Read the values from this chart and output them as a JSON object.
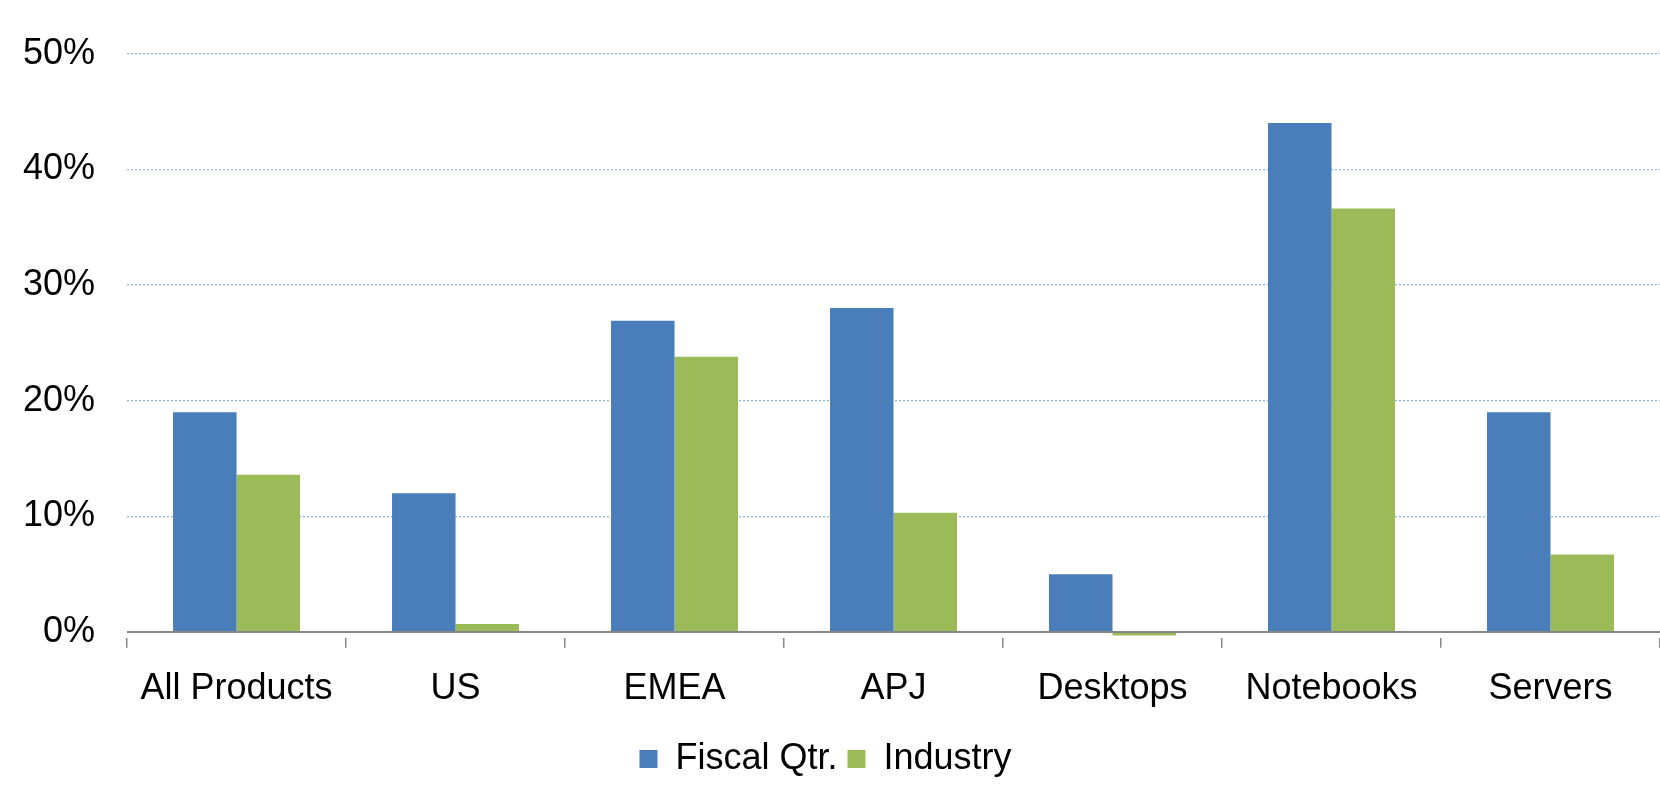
{
  "chart_data": {
    "type": "bar",
    "categories": [
      "All Products",
      "US",
      "EMEA",
      "APJ",
      "Desktops",
      "Notebooks",
      "Servers"
    ],
    "series": [
      {
        "name": "Fiscal Qtr.",
        "color": "#4a7ebb",
        "values": [
          19,
          12,
          26.9,
          28,
          5,
          44,
          19
        ]
      },
      {
        "name": "Industry",
        "color": "#9bbb59",
        "values": [
          13.6,
          0.7,
          23.8,
          10.3,
          -0.3,
          36.6,
          6.7
        ]
      }
    ],
    "ylim": [
      -0.5,
      50
    ],
    "yticks": [
      {
        "value": 0,
        "label": "0%"
      },
      {
        "value": 10,
        "label": "10%"
      },
      {
        "value": 20,
        "label": "20%"
      },
      {
        "value": 30,
        "label": "30%"
      },
      {
        "value": 40,
        "label": "40%"
      },
      {
        "value": 50,
        "label": "50%"
      }
    ],
    "grid": "y",
    "legend": "bottom"
  }
}
